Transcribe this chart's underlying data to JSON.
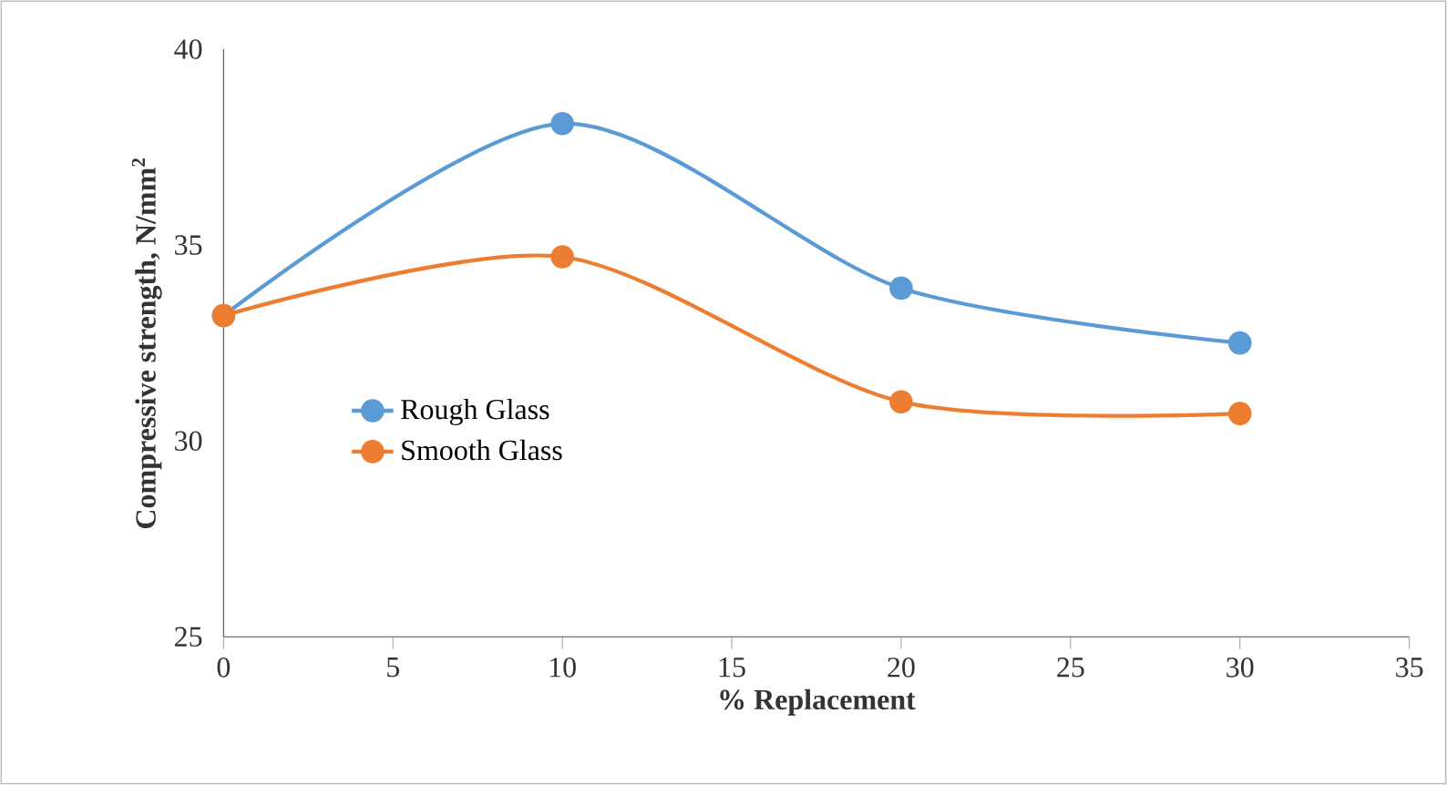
{
  "chart_data": {
    "type": "line",
    "xlabel": "% Replacement",
    "ylabel": "Compressive strength, N/mm$^{2}$",
    "x": [
      0,
      10,
      20,
      30
    ],
    "series": [
      {
        "name": "Rough Glass",
        "color": "#5b9bd5",
        "values": [
          33.2,
          38.1,
          33.9,
          32.5
        ]
      },
      {
        "name": "Smooth Glass",
        "color": "#ed7d31",
        "values": [
          33.2,
          34.7,
          31.0,
          30.7
        ]
      }
    ],
    "xlim": [
      0,
      35
    ],
    "xticks": [
      0,
      5,
      10,
      15,
      20,
      25,
      30,
      35
    ],
    "ylim": [
      25,
      40
    ],
    "yticks": [
      25,
      30,
      35,
      40
    ],
    "grid": false,
    "legend": "left",
    "marker": "circle",
    "line_style": "solid"
  }
}
